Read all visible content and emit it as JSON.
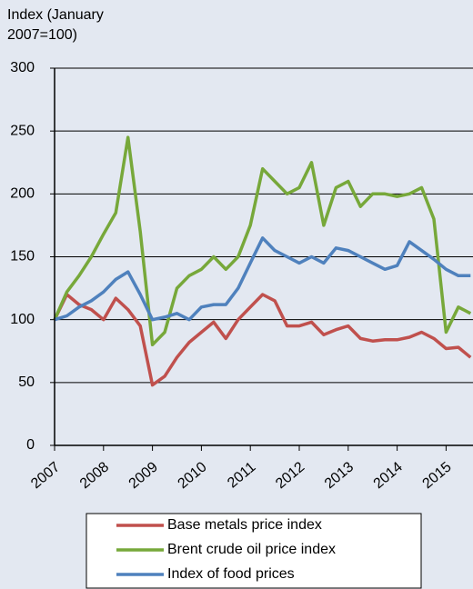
{
  "chart_data": {
    "type": "line",
    "y_label": "Index (January 2007=100)",
    "x": [
      2007,
      2007.25,
      2007.5,
      2007.75,
      2008,
      2008.25,
      2008.5,
      2008.75,
      2009,
      2009.25,
      2009.5,
      2009.75,
      2010,
      2010.25,
      2010.5,
      2010.75,
      2011,
      2011.25,
      2011.5,
      2011.75,
      2012,
      2012.25,
      2012.5,
      2012.75,
      2013,
      2013.25,
      2013.5,
      2013.75,
      2014,
      2014.25,
      2014.5,
      2014.75,
      2015,
      2015.25,
      2015.5
    ],
    "series": [
      {
        "name": "Base metals price index",
        "color": "#c0504d",
        "values": [
          100,
          120,
          112,
          108,
          100,
          117,
          108,
          95,
          48,
          55,
          70,
          82,
          90,
          98,
          85,
          100,
          110,
          120,
          115,
          95,
          95,
          98,
          88,
          92,
          95,
          85,
          83,
          84,
          84,
          86,
          90,
          85,
          77,
          78,
          70
        ]
      },
      {
        "name": "Brent crude oil price index",
        "color": "#77a83a",
        "values": [
          100,
          122,
          135,
          150,
          168,
          185,
          245,
          170,
          80,
          90,
          125,
          135,
          140,
          150,
          140,
          150,
          175,
          220,
          210,
          200,
          205,
          225,
          175,
          205,
          210,
          190,
          200,
          200,
          198,
          200,
          205,
          180,
          90,
          110,
          105
        ]
      },
      {
        "name": "Index of food prices",
        "color": "#4f81bd",
        "values": [
          100,
          103,
          110,
          115,
          122,
          132,
          138,
          120,
          100,
          102,
          105,
          100,
          110,
          112,
          112,
          125,
          145,
          165,
          155,
          150,
          145,
          150,
          145,
          157,
          155,
          150,
          145,
          140,
          143,
          162,
          155,
          148,
          140,
          135,
          135
        ]
      }
    ],
    "xlim": [
      2007,
      2015.55
    ],
    "xticks": [
      2007,
      2008,
      2009,
      2010,
      2011,
      2012,
      2013,
      2014,
      2015
    ],
    "ylim": [
      0,
      300
    ],
    "yticks": [
      0,
      50,
      100,
      150,
      200,
      250,
      300
    ],
    "grid": true
  }
}
